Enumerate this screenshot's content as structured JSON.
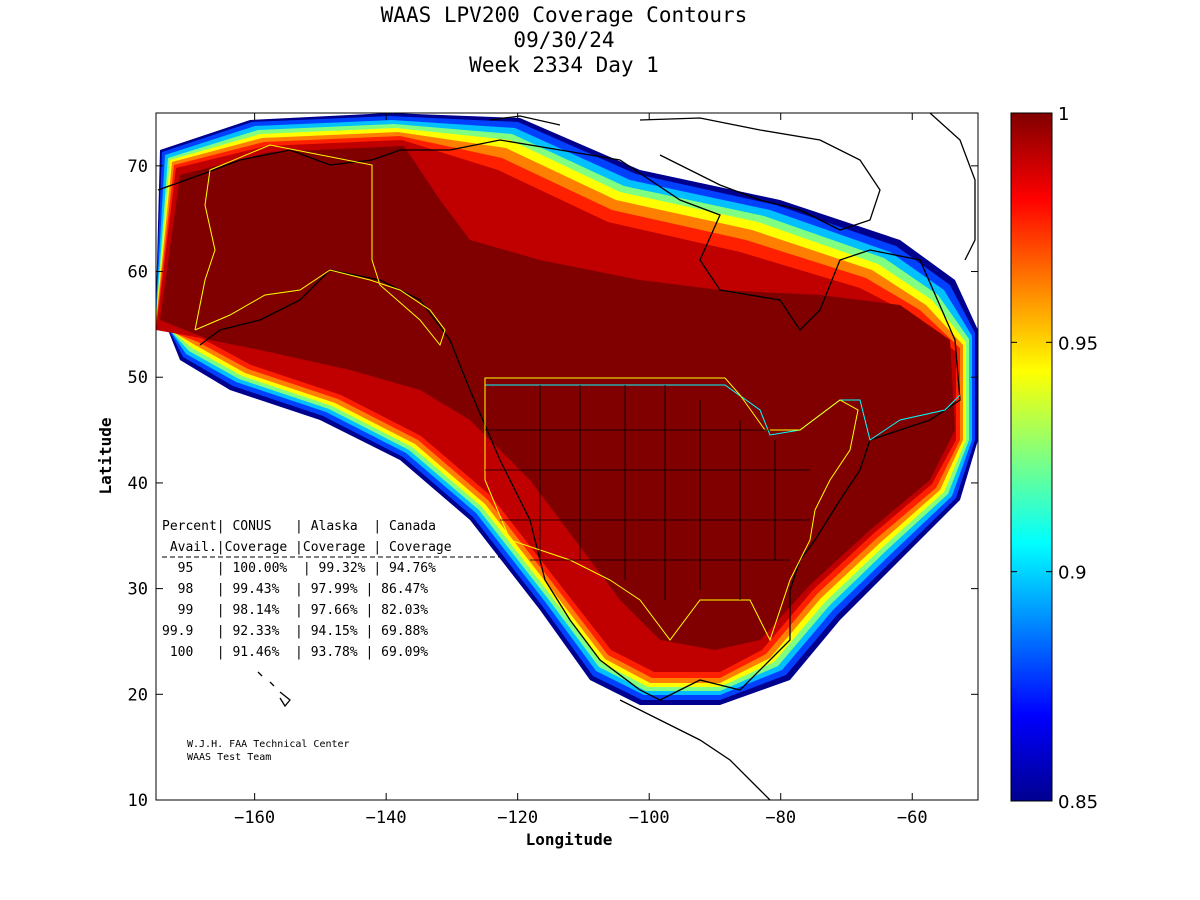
{
  "title": {
    "line1": "WAAS LPV200 Coverage Contours",
    "line2": "09/30/24",
    "line3": "Week 2334 Day 1"
  },
  "axes": {
    "xlabel": "Longitude",
    "ylabel": "Latitude",
    "xlim": [
      -175,
      -50
    ],
    "ylim": [
      10,
      75
    ],
    "xticks": [
      -160,
      -140,
      -120,
      -100,
      -80,
      -60
    ],
    "yticks": [
      10,
      20,
      30,
      40,
      50,
      60,
      70
    ]
  },
  "colorbar": {
    "min": 0.85,
    "max": 1,
    "ticks": [
      "1",
      "0.95",
      "0.9",
      "0.85"
    ],
    "colors": [
      "#00008f",
      "#0000ff",
      "#0080ff",
      "#00ffff",
      "#80ff80",
      "#ffff00",
      "#ff8000",
      "#ff0000",
      "#800000"
    ]
  },
  "coverage_table": {
    "header1": "Percent| CONUS   | Alaska  | Canada",
    "header2": " Avail.|Coverage |Coverage | Coverage",
    "rows": [
      "  95   | 100.00%  | 99.32% | 94.76%",
      "  98   | 99.43%  | 97.99% | 86.47%",
      "  99   | 98.14%  | 97.66% | 82.03%",
      "99.9   | 92.33%  | 94.15% | 69.88%",
      " 100   | 91.46%  | 93.78% | 69.09%"
    ]
  },
  "credits": {
    "line1": "W.J.H. FAA Technical Center",
    "line2": "WAAS Test Team"
  }
}
